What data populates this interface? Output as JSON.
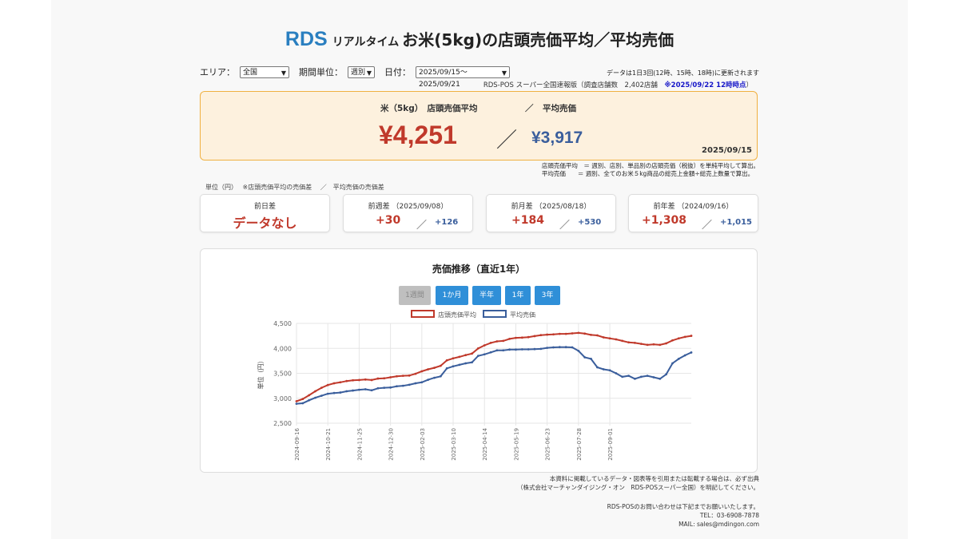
{
  "title": {
    "brand": "RDS",
    "realtime": "リアルタイム",
    "main": "お米(5kg)の店頭売価平均／平均売価"
  },
  "controls": {
    "area_label": "エリア：",
    "area_value": "全国",
    "period_label": "期間単位：",
    "period_value": "週別",
    "date_label": "日付：",
    "date_value": "2025/09/15〜2025/09/21"
  },
  "update_note": "データは1日3回(12時、15時、18時)に更新されます",
  "source": {
    "text": "RDS-POS スーパー全国速報版（調査店舗数　2,402店舗　",
    "timestamp": "※2025/09/22 12時時点",
    "close": "）"
  },
  "hero": {
    "label1": "米（5kg）　店頭売価平均",
    "sep_label": "／",
    "label2": "平均売価",
    "value1": "¥4,251",
    "slash": "／",
    "value2": "¥3,917",
    "date": "2025/09/15"
  },
  "notes": [
    "店頭売価平均　＝ 週別、店別、単品別の店頭売価（税抜）を単純平均して算出。",
    "平均売価　　＝ 週別、全てのお米５kg商品の総売上金額÷総売上数量で算出。"
  ],
  "unit_note": "単位（円）　 ※店頭売価平均の売価差　 ／　平均売価の売価差",
  "cards": [
    {
      "title": "前日差",
      "nodata": "データなし"
    },
    {
      "title": "前週差 （2025/09/08）",
      "v1": "+30",
      "sl": "／",
      "v2": "+126"
    },
    {
      "title": "前月差 （2025/08/18）",
      "v1": "+184",
      "sl": "／",
      "v2": "+530"
    },
    {
      "title": "前年差 （2024/09/16）",
      "v1": "+1,308",
      "sl": "／",
      "v2": "+1,015"
    }
  ],
  "buttons": [
    "1週間",
    "1か月",
    "半年",
    "1年",
    "3年"
  ],
  "colors": {
    "series1": "#c0392b",
    "series2": "#3a5e9c",
    "button": "#2f8fd8",
    "hero_bg": "#fdf1de",
    "hero_border": "#f0b040"
  },
  "chart_data": {
    "type": "line",
    "title": "売価推移（直近1年）",
    "ylabel": "単位（円）",
    "ylim": [
      2500,
      4500
    ],
    "yticks": [
      "2,500",
      "3,000",
      "3,500",
      "4,000",
      "4,500"
    ],
    "xticks": [
      "2024-09-16",
      "2024-10-21",
      "2024-11-25",
      "2024-12-30",
      "2025-02-03",
      "2025-03-10",
      "2025-04-14",
      "2025-05-19",
      "2025-06-23",
      "2025-07-28",
      "2025-09-01"
    ],
    "grid": true,
    "legend_position": "top",
    "series": [
      {
        "name": "店頭売価平均",
        "values": [
          2940,
          2985,
          3060,
          3140,
          3210,
          3265,
          3300,
          3320,
          3345,
          3360,
          3365,
          3375,
          3365,
          3395,
          3400,
          3420,
          3440,
          3450,
          3455,
          3490,
          3540,
          3580,
          3610,
          3650,
          3760,
          3800,
          3830,
          3865,
          3895,
          4000,
          4060,
          4110,
          4140,
          4150,
          4190,
          4210,
          4215,
          4225,
          4245,
          4265,
          4275,
          4280,
          4290,
          4290,
          4300,
          4310,
          4295,
          4270,
          4260,
          4220,
          4200,
          4180,
          4150,
          4120,
          4110,
          4090,
          4070,
          4080,
          4070,
          4100,
          4160,
          4200,
          4230,
          4251
        ]
      },
      {
        "name": "平均売価",
        "values": [
          2890,
          2900,
          2960,
          3010,
          3050,
          3090,
          3105,
          3115,
          3140,
          3155,
          3170,
          3180,
          3160,
          3200,
          3210,
          3215,
          3240,
          3250,
          3270,
          3300,
          3320,
          3370,
          3410,
          3440,
          3600,
          3640,
          3670,
          3700,
          3720,
          3850,
          3880,
          3920,
          3960,
          3960,
          3975,
          3975,
          3980,
          3980,
          3985,
          3990,
          4010,
          4020,
          4025,
          4025,
          4020,
          3950,
          3820,
          3790,
          3620,
          3580,
          3560,
          3500,
          3430,
          3450,
          3390,
          3430,
          3450,
          3420,
          3390,
          3480,
          3700,
          3790,
          3860,
          3917
        ]
      }
    ]
  },
  "footer": {
    "copy1": "本資料に掲載しているデータ・図表等を引用または転載する場合は、必ず出典",
    "copy2": "（株式会社マーチャンダイジング・オン　RDS-POSスーパー全国）を明記してください。",
    "contact1": "RDS-POSのお問い合わせは下記までお願いいたします。",
    "contact2": "TEL：03-6908-7878",
    "contact3": "MAIL: sales@mdingon.com"
  }
}
